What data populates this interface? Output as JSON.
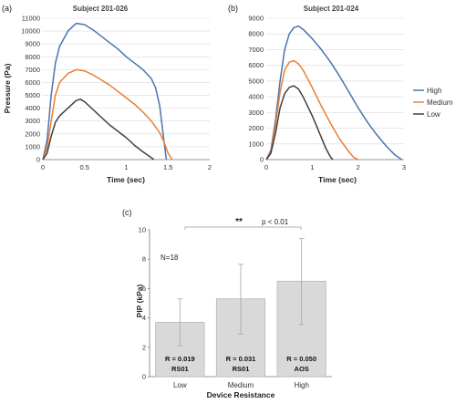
{
  "panels": {
    "a": {
      "label": "(a)"
    },
    "b": {
      "label": "(b)"
    },
    "c": {
      "label": "(c)"
    }
  },
  "colors": {
    "High": "#4a73b0",
    "Medium": "#ed7d31",
    "Low": "#404040",
    "bar_fill": "#d9d9d9",
    "bar_edge": "#b7b7b7",
    "error": "#a6a6a6"
  },
  "chart_data": [
    {
      "type": "line",
      "title": "Subject 201-026",
      "xlabel": "Time (sec)",
      "ylabel": "Pressure (Pa)",
      "xlim": [
        0,
        2
      ],
      "ylim": [
        0,
        11000
      ],
      "xticks": [
        "0",
        "0.5",
        "1",
        "1.5",
        "2"
      ],
      "yticks": [
        "0",
        "1000",
        "2000",
        "3000",
        "4000",
        "5000",
        "6000",
        "7000",
        "8000",
        "9000",
        "10000",
        "11000"
      ],
      "grid": true,
      "series": [
        {
          "name": "High",
          "x": [
            0,
            0.05,
            0.1,
            0.15,
            0.2,
            0.3,
            0.4,
            0.5,
            0.6,
            0.7,
            0.8,
            0.9,
            1.0,
            1.1,
            1.2,
            1.3,
            1.35,
            1.4,
            1.45,
            1.48
          ],
          "y": [
            0,
            1500,
            5000,
            7500,
            8800,
            10000,
            10600,
            10500,
            10100,
            9600,
            9100,
            8600,
            8000,
            7500,
            7000,
            6300,
            5600,
            4200,
            1500,
            0
          ]
        },
        {
          "name": "Medium",
          "x": [
            0,
            0.05,
            0.1,
            0.15,
            0.2,
            0.3,
            0.4,
            0.5,
            0.6,
            0.7,
            0.8,
            0.9,
            1.0,
            1.1,
            1.2,
            1.3,
            1.4,
            1.45,
            1.5,
            1.55
          ],
          "y": [
            0,
            900,
            3000,
            5000,
            6000,
            6700,
            7000,
            6900,
            6600,
            6200,
            5800,
            5300,
            4800,
            4300,
            3700,
            3000,
            2100,
            1400,
            500,
            0
          ]
        },
        {
          "name": "Low",
          "x": [
            0,
            0.05,
            0.1,
            0.15,
            0.2,
            0.3,
            0.4,
            0.45,
            0.5,
            0.6,
            0.7,
            0.8,
            0.9,
            1.0,
            1.1,
            1.2,
            1.3,
            1.33
          ],
          "y": [
            0,
            500,
            1800,
            2900,
            3400,
            4000,
            4600,
            4700,
            4500,
            3900,
            3300,
            2700,
            2200,
            1700,
            1100,
            600,
            150,
            0
          ]
        }
      ]
    },
    {
      "type": "line",
      "title": "Subject 201-024",
      "xlabel": "Time (sec)",
      "ylabel": "",
      "xlim": [
        0,
        3
      ],
      "ylim": [
        0,
        9000
      ],
      "xticks": [
        "0",
        "1",
        "2",
        "3"
      ],
      "yticks": [
        "0",
        "1000",
        "2000",
        "3000",
        "4000",
        "5000",
        "6000",
        "7000",
        "8000",
        "9000"
      ],
      "grid": true,
      "legend": "right",
      "series": [
        {
          "name": "High",
          "x": [
            0,
            0.1,
            0.2,
            0.3,
            0.4,
            0.5,
            0.6,
            0.7,
            0.8,
            0.9,
            1.0,
            1.2,
            1.4,
            1.6,
            1.8,
            2.0,
            2.2,
            2.4,
            2.6,
            2.8,
            2.95
          ],
          "y": [
            0,
            600,
            2500,
            5000,
            7000,
            8000,
            8400,
            8500,
            8300,
            8000,
            7700,
            7000,
            6200,
            5300,
            4300,
            3300,
            2400,
            1600,
            900,
            300,
            0
          ]
        },
        {
          "name": "Medium",
          "x": [
            0,
            0.1,
            0.2,
            0.3,
            0.4,
            0.5,
            0.6,
            0.7,
            0.8,
            1.0,
            1.2,
            1.4,
            1.6,
            1.8,
            1.9,
            2.0
          ],
          "y": [
            0,
            500,
            2200,
            4300,
            5700,
            6200,
            6300,
            6100,
            5700,
            4600,
            3400,
            2300,
            1300,
            500,
            150,
            0
          ]
        },
        {
          "name": "Low",
          "x": [
            0,
            0.1,
            0.2,
            0.3,
            0.4,
            0.5,
            0.6,
            0.7,
            0.8,
            1.0,
            1.1,
            1.2,
            1.3,
            1.4,
            1.45
          ],
          "y": [
            0,
            400,
            1700,
            3300,
            4200,
            4600,
            4700,
            4500,
            4000,
            2800,
            2100,
            1400,
            700,
            150,
            0
          ]
        }
      ]
    },
    {
      "type": "bar",
      "xlabel": "Device Resistance",
      "ylabel": "PIP (kPa)",
      "ylim": [
        0,
        10
      ],
      "yticks": [
        "0",
        "2",
        "4",
        "6",
        "8",
        "10"
      ],
      "categories": [
        "Low",
        "Medium",
        "High"
      ],
      "values": [
        3.7,
        5.3,
        6.5
      ],
      "error_low": [
        2.1,
        2.9,
        3.55
      ],
      "error_high": [
        5.3,
        7.65,
        9.4
      ],
      "bar_labels": [
        [
          "R = 0.019",
          "RS01"
        ],
        [
          "R = 0.031",
          "RS01"
        ],
        [
          "R = 0.050",
          "AOS"
        ]
      ],
      "annotations": {
        "n": "N=18",
        "stars": "**",
        "p": "p < 0.01"
      }
    }
  ]
}
